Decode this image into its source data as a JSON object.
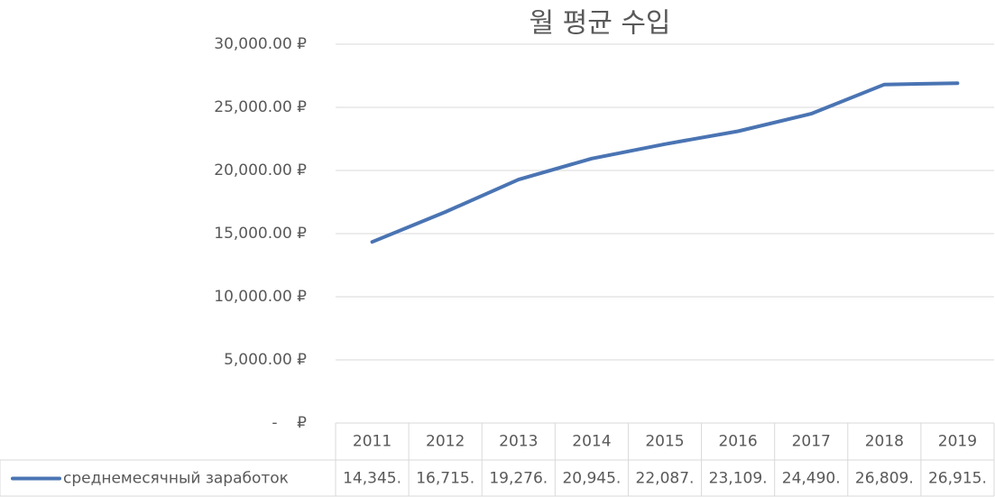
{
  "chart_data": {
    "type": "line",
    "title": "월 평균 수입",
    "categories": [
      "2011",
      "2012",
      "2013",
      "2014",
      "2015",
      "2016",
      "2017",
      "2018",
      "2019"
    ],
    "series": [
      {
        "name": "среднемесячный заработок",
        "color": "#4a74b3",
        "values": [
          14345,
          16715,
          19276,
          20945,
          22087,
          23109,
          24490,
          26809,
          26915
        ],
        "value_labels": [
          "14,345.",
          "16,715.",
          "19,276.",
          "20,945.",
          "22,087.",
          "23,109.",
          "24,490.",
          "26,809.",
          "26,915."
        ]
      }
    ],
    "ylim": [
      0,
      30000
    ],
    "yticks": [
      {
        "value": 0,
        "label": "-    ₽"
      },
      {
        "value": 5000,
        "label": "5,000.00 ₽"
      },
      {
        "value": 10000,
        "label": "10,000.00 ₽"
      },
      {
        "value": 15000,
        "label": "15,000.00 ₽"
      },
      {
        "value": 20000,
        "label": "20,000.00 ₽"
      },
      {
        "value": 25000,
        "label": "25,000.00 ₽"
      },
      {
        "value": 30000,
        "label": "30,000.00 ₽"
      }
    ],
    "grid": true
  }
}
